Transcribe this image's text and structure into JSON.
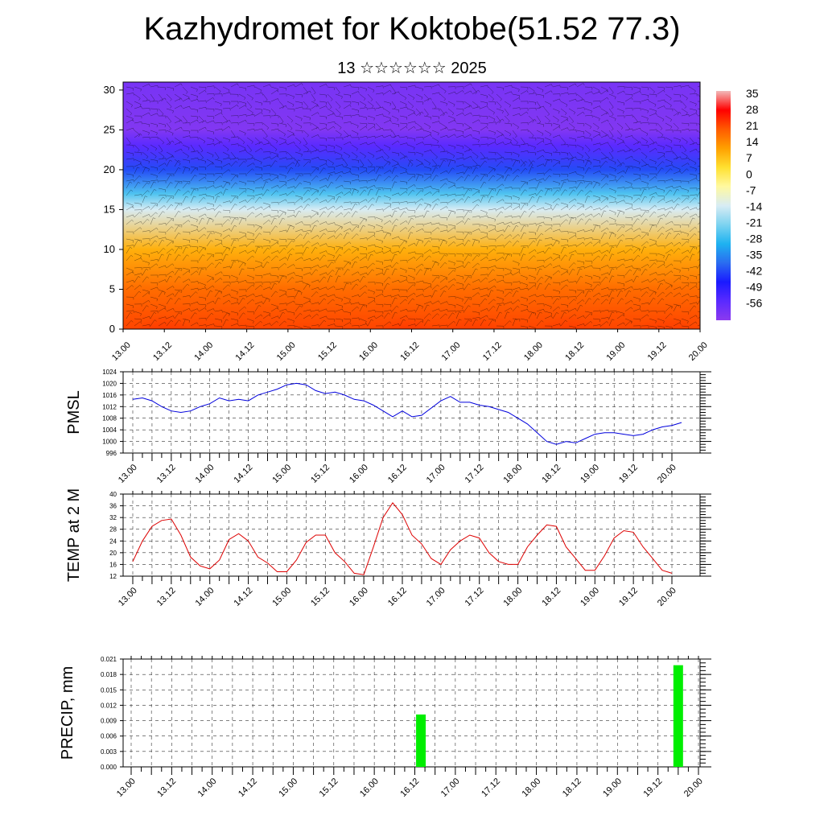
{
  "header": {
    "title": "Kazhydromet for Koktobe(51.52 77.3)",
    "subtitle": "13 ☆☆☆☆☆☆ 2025"
  },
  "time_labels": [
    "13.00",
    "13.12",
    "14.00",
    "14.12",
    "15.00",
    "15.12",
    "16.00",
    "16.12",
    "17.00",
    "17.12",
    "18.00",
    "18.12",
    "19.00",
    "19.12",
    "20.00"
  ],
  "chart_data": [
    {
      "id": "cross_section",
      "type": "heatmap",
      "title": "",
      "xlabel": "",
      "ylabel": "",
      "ylim": [
        0,
        31
      ],
      "yticks": [
        0,
        5,
        10,
        15,
        20,
        25,
        30
      ],
      "x": [
        "13.00",
        "13.12",
        "14.00",
        "14.12",
        "15.00",
        "15.12",
        "16.00",
        "16.12",
        "17.00",
        "17.12",
        "18.00",
        "18.12",
        "19.00",
        "19.12",
        "20.00"
      ],
      "colorbar": {
        "labels": [
          "35",
          "28",
          "21",
          "14",
          "7",
          "0",
          "-7",
          "-14",
          "-21",
          "-28",
          "-35",
          "-42",
          "-49",
          "-56"
        ],
        "colors": [
          "#f2b9b9",
          "#ff0000",
          "#ff5a00",
          "#ffa000",
          "#ffe030",
          "#fff9a0",
          "#d8ecf4",
          "#7dd3f0",
          "#1eb2f0",
          "#2a6cf0",
          "#1a1aff",
          "#5a2aff",
          "#8c3aef"
        ]
      },
      "layers": [
        {
          "height": 0,
          "temp": 24
        },
        {
          "height": 5,
          "temp": 20
        },
        {
          "height": 10,
          "temp": 12
        },
        {
          "height": 15,
          "temp": -10
        },
        {
          "height": 17,
          "temp": -22
        },
        {
          "height": 20,
          "temp": -38
        },
        {
          "height": 23,
          "temp": -52
        },
        {
          "height": 25,
          "temp": -60
        },
        {
          "height": 31,
          "temp": -58
        }
      ],
      "warm_plumes": [
        {
          "x": 1.0,
          "peak_temp": 35
        },
        {
          "x": 6.9,
          "peak_temp": 38
        },
        {
          "x": 8.5,
          "peak_temp": 28
        },
        {
          "x": 10.8,
          "peak_temp": 30
        },
        {
          "x": 13.2,
          "peak_temp": 28
        }
      ],
      "wind_barbs": true
    },
    {
      "id": "pmsl",
      "type": "line",
      "title": "",
      "ylabel": "PMSL",
      "ylim": [
        996,
        1024
      ],
      "yticks": [
        996,
        1000,
        1004,
        1008,
        1012,
        1016,
        1020,
        1024
      ],
      "x_step_hours": 3,
      "series": [
        {
          "color": "#0000dd",
          "values": [
            1014.5,
            1015,
            1014,
            1012,
            1010.5,
            1010,
            1010.5,
            1012,
            1013,
            1015,
            1014,
            1014.5,
            1014,
            1016,
            1017,
            1018,
            1019.5,
            1020,
            1019.5,
            1017.5,
            1016.5,
            1017,
            1016,
            1014.5,
            1014,
            1012.5,
            1010.5,
            1008.5,
            1010.5,
            1008.5,
            1009,
            1011.5,
            1014,
            1015.5,
            1013.5,
            1013.5,
            1012.5,
            1012,
            1011,
            1010,
            1008,
            1006,
            1003,
            1000,
            999,
            1000,
            999.5,
            1001,
            1002.5,
            1003,
            1003,
            1002.5,
            1002,
            1002.5,
            1004,
            1005,
            1005.5,
            1006.5
          ]
        }
      ],
      "grid": true
    },
    {
      "id": "temp_2m",
      "type": "line",
      "title": "",
      "ylabel": "TEMP at 2 M",
      "ylim": [
        12,
        40
      ],
      "yticks": [
        12,
        16,
        20,
        24,
        28,
        32,
        36,
        40
      ],
      "x_step_hours": 3,
      "series": [
        {
          "color": "#dd0000",
          "values": [
            17,
            24,
            29,
            31,
            31.5,
            26,
            18.5,
            15.5,
            14.5,
            17.5,
            24.5,
            26.5,
            24,
            18.5,
            16.5,
            13.5,
            13.5,
            17.5,
            23.5,
            26,
            26,
            20,
            17,
            13,
            12.5,
            22,
            32,
            37,
            33,
            26,
            23,
            18,
            16,
            21,
            24,
            26,
            25,
            20,
            17,
            16,
            16,
            22,
            26,
            29.5,
            29,
            22,
            18,
            14,
            14,
            19,
            25,
            27.5,
            27,
            22,
            18,
            14,
            13
          ]
        }
      ],
      "grid": true
    },
    {
      "id": "precip",
      "type": "bar",
      "title": "",
      "ylabel": "PRECIP, mm",
      "ylim": [
        0,
        0.021
      ],
      "yticks": [
        "0.000",
        "0.003",
        "0.006",
        "0.009",
        "0.012",
        "0.015",
        "0.018",
        "0.021"
      ],
      "bar_color": "#00ee00",
      "bars": [
        {
          "time_index": 7.15,
          "value": 0.0102
        },
        {
          "time_index": 13.5,
          "value": 0.0198
        }
      ],
      "grid": true
    }
  ]
}
